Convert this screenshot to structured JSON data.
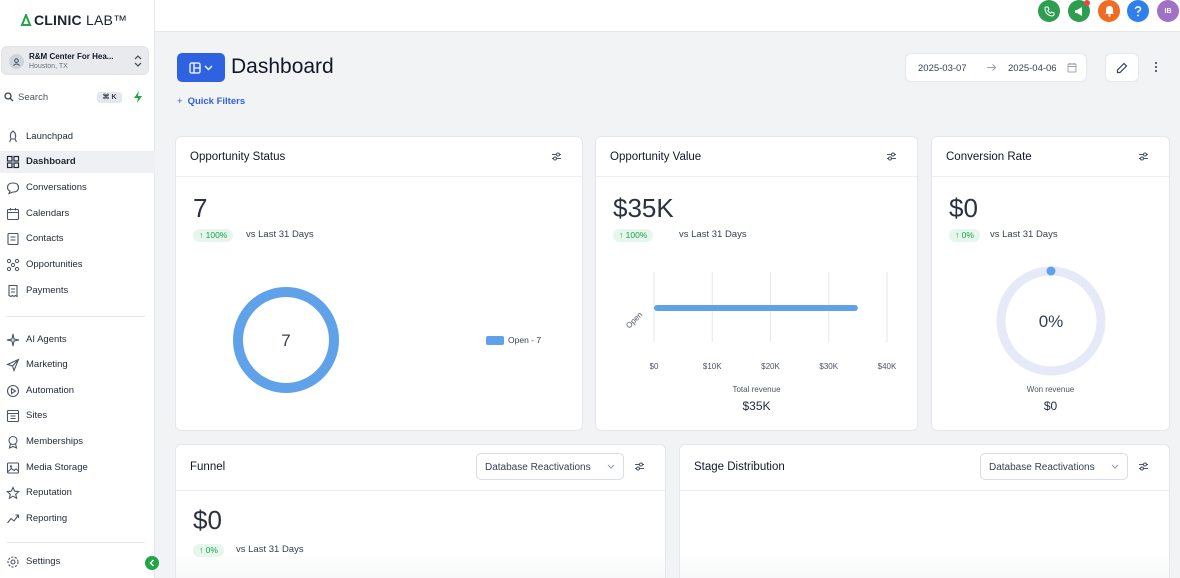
{
  "brand": {
    "name_bold": "CLINIC",
    "name_rest": " LAB™",
    "accent": "#22a447"
  },
  "account": {
    "name": "R&M Center For Hea...",
    "location": "Houston, TX"
  },
  "search": {
    "label": "Search",
    "shortcut": "⌘ K"
  },
  "nav": [
    {
      "label": "Launchpad",
      "icon": "rocket-icon"
    },
    {
      "label": "Dashboard",
      "icon": "grid-icon",
      "active": true
    },
    {
      "label": "Conversations",
      "icon": "chat-bubble-icon"
    },
    {
      "label": "Calendars",
      "icon": "calendar-icon"
    },
    {
      "label": "Contacts",
      "icon": "contacts-icon"
    },
    {
      "label": "Opportunities",
      "icon": "opportunities-icon"
    },
    {
      "label": "Payments",
      "icon": "receipt-icon"
    },
    {
      "label": "AI Agents",
      "icon": "sparkle-icon"
    },
    {
      "label": "Marketing",
      "icon": "send-icon"
    },
    {
      "label": "Automation",
      "icon": "automation-icon"
    },
    {
      "label": "Sites",
      "icon": "sites-icon"
    },
    {
      "label": "Memberships",
      "icon": "badge-icon"
    },
    {
      "label": "Media Storage",
      "icon": "image-icon"
    },
    {
      "label": "Reputation",
      "icon": "star-icon"
    },
    {
      "label": "Reporting",
      "icon": "trend-icon"
    },
    {
      "label": "Settings",
      "icon": "gear-icon"
    }
  ],
  "topbar": {
    "avatar_initials": "IB"
  },
  "header": {
    "title": "Dashboard",
    "quick_filters": "Quick Filters",
    "date_start": "2025-03-07",
    "date_end": "2025-04-06"
  },
  "cards": {
    "opportunity_status": {
      "title": "Opportunity Status",
      "value": "7",
      "change": "↑ 100%",
      "vs": "vs Last 31 Days",
      "donut_center": "7",
      "legend": "Open - 7",
      "open_share": 1.0
    },
    "opportunity_value": {
      "title": "Opportunity Value",
      "value": "$35K",
      "change": "↑ 100%",
      "vs": "vs Last 31 Days",
      "footer_label": "Total revenue",
      "footer_value": "$35K"
    },
    "conversion_rate": {
      "title": "Conversion Rate",
      "value": "$0",
      "change": "↑ 0%",
      "vs": "vs Last 31 Days",
      "gauge_label": "0%",
      "gauge_share": 0.0,
      "footer_label": "Won revenue",
      "footer_value": "$0"
    },
    "funnel": {
      "title": "Funnel",
      "select": "Database Reactivations",
      "value": "$0",
      "change": "↑ 0%",
      "vs": "vs Last 31 Days"
    },
    "stage_distribution": {
      "title": "Stage Distribution",
      "select": "Database Reactivations"
    }
  },
  "chart_data": {
    "type": "bar",
    "orientation": "horizontal",
    "categories": [
      "Open"
    ],
    "values": [
      35000
    ],
    "xlim": [
      0,
      40000
    ],
    "xticks": [
      "$0",
      "$10K",
      "$20K",
      "$30K",
      "$40K"
    ],
    "bar_color": "#5fa2ea",
    "grid": true
  }
}
